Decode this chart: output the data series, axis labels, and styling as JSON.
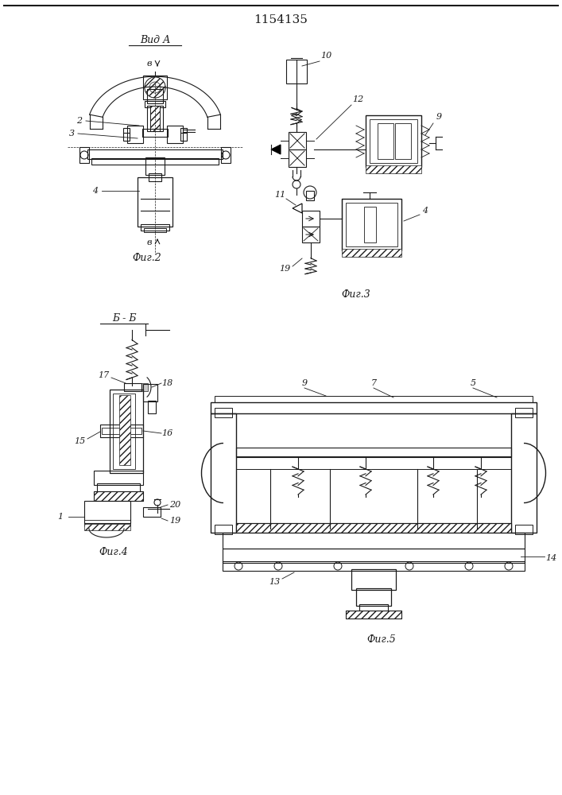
{
  "title": "1154135",
  "title_fontsize": 11,
  "background_color": "#ffffff",
  "line_color": "#1a1a1a",
  "fig2_label": "Фиг.2",
  "fig3_label": "Фиг.3",
  "fig4_label": "Фиг.4",
  "fig5_label": "Фиг.5",
  "vid_a_label": "Вид А",
  "bb_label": "Б - Б",
  "font_size_label": 9,
  "font_size_num": 8
}
